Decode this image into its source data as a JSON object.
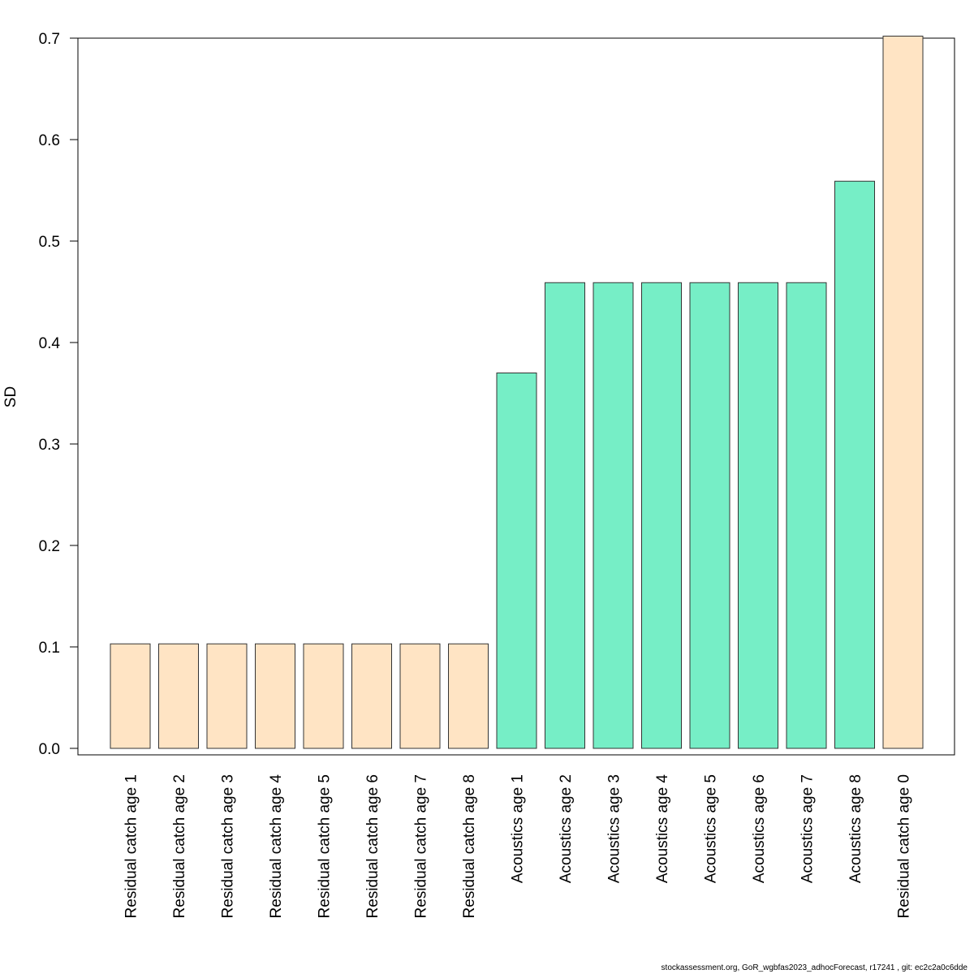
{
  "chart_data": {
    "type": "bar",
    "categories": [
      "Residual catch age 1",
      "Residual catch age 2",
      "Residual catch age 3",
      "Residual catch age 4",
      "Residual catch age 5",
      "Residual catch age 6",
      "Residual catch age 7",
      "Residual catch age 8",
      "Acoustics age 1",
      "Acoustics age 2",
      "Acoustics age 3",
      "Acoustics age 4",
      "Acoustics age 5",
      "Acoustics age 6",
      "Acoustics age 7",
      "Acoustics age 8",
      "Residual catch age 0"
    ],
    "values": [
      0.103,
      0.103,
      0.103,
      0.103,
      0.103,
      0.103,
      0.103,
      0.103,
      0.37,
      0.459,
      0.459,
      0.459,
      0.459,
      0.459,
      0.459,
      0.559,
      0.702
    ],
    "bar_colors": [
      "#FFE4C4",
      "#FFE4C4",
      "#FFE4C4",
      "#FFE4C4",
      "#FFE4C4",
      "#FFE4C4",
      "#FFE4C4",
      "#FFE4C4",
      "#76EEC6",
      "#76EEC6",
      "#76EEC6",
      "#76EEC6",
      "#76EEC6",
      "#76EEC6",
      "#76EEC6",
      "#76EEC6",
      "#FFE4C4"
    ],
    "ylabel": "SD",
    "xlabel": "",
    "ylim": [
      0,
      0.7
    ],
    "yticks": [
      "0.0",
      "0.1",
      "0.2",
      "0.3",
      "0.4",
      "0.5",
      "0.6",
      "0.7"
    ],
    "grid": false
  },
  "footer": "stockassessment.org, GoR_wgbfas2023_adhocForecast, r17241 , git: ec2c2a0c6dde"
}
